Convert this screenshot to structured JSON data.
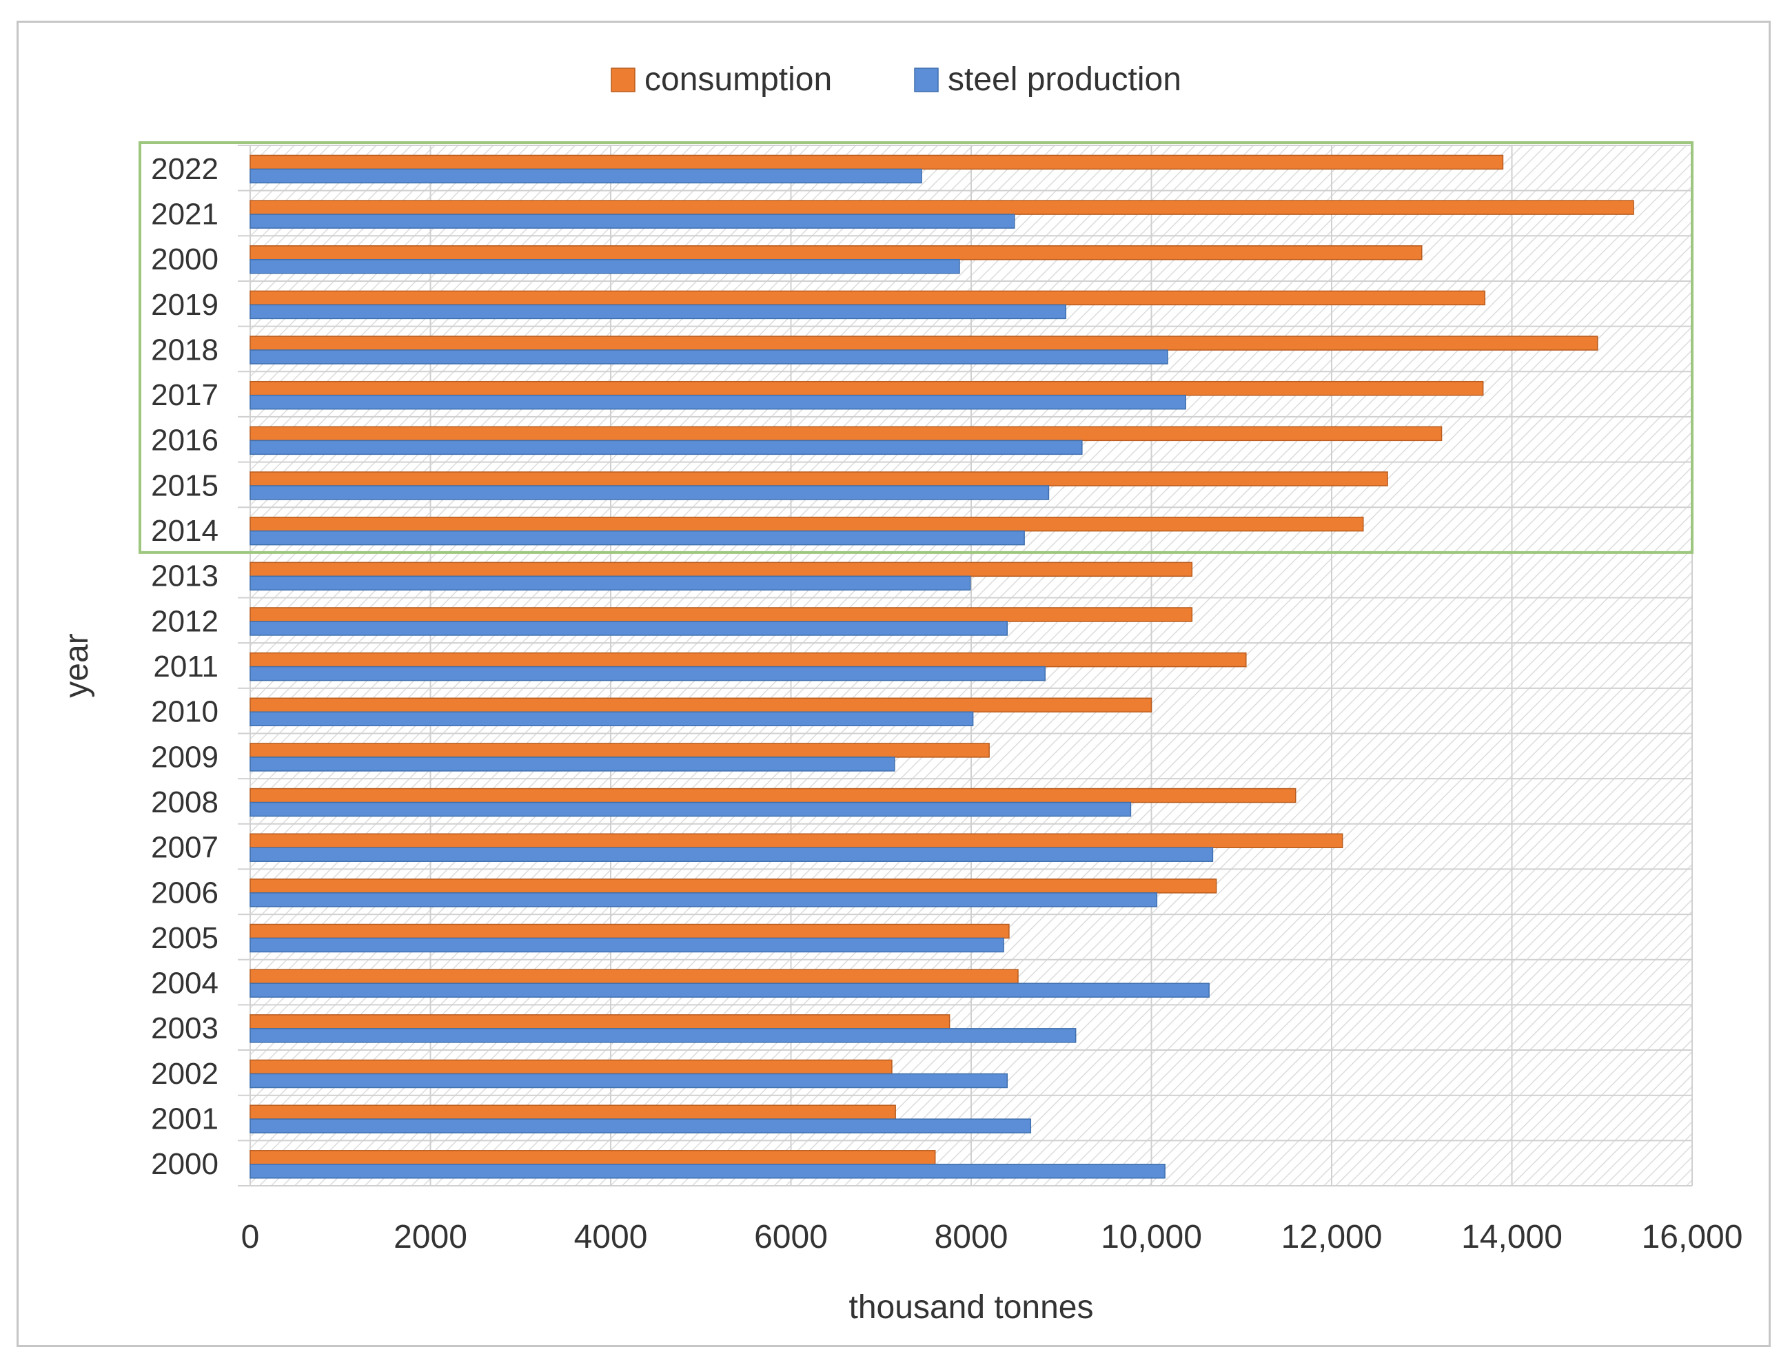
{
  "chart_data": {
    "type": "bar",
    "orientation": "horizontal",
    "xlabel": "thousand tonnes",
    "ylabel": "year",
    "xlim": [
      0,
      16000
    ],
    "xticks": [
      "0",
      "2000",
      "4000",
      "6000",
      "8000",
      "10,000",
      "12,000",
      "14,000",
      "16,000"
    ],
    "grid": true,
    "legend_position": "top-center",
    "categories": [
      "2022",
      "2021",
      "2000",
      "2019",
      "2018",
      "2017",
      "2016",
      "2015",
      "2014",
      "2013",
      "2012",
      "2011",
      "2010",
      "2009",
      "2008",
      "2007",
      "2006",
      "2005",
      "2004",
      "2003",
      "2002",
      "2001",
      "2000"
    ],
    "series": [
      {
        "name": "consumption",
        "color": "#ED7D31",
        "values": [
          13900,
          15350,
          13000,
          13700,
          14950,
          13680,
          13220,
          12620,
          12350,
          10450,
          10450,
          11050,
          10000,
          8200,
          11600,
          12120,
          10720,
          8420,
          8520,
          7760,
          7120,
          7160,
          7600
        ]
      },
      {
        "name": "steel production",
        "color": "#5B8ED6",
        "values": [
          7450,
          8480,
          7870,
          9050,
          10180,
          10380,
          9230,
          8860,
          8590,
          7990,
          8400,
          8820,
          8020,
          7150,
          9770,
          10680,
          10060,
          8360,
          10640,
          9160,
          8400,
          8660,
          10150
        ]
      }
    ],
    "highlight_box": {
      "from": "2022",
      "to": "2014",
      "color": "#9DC67E"
    }
  }
}
